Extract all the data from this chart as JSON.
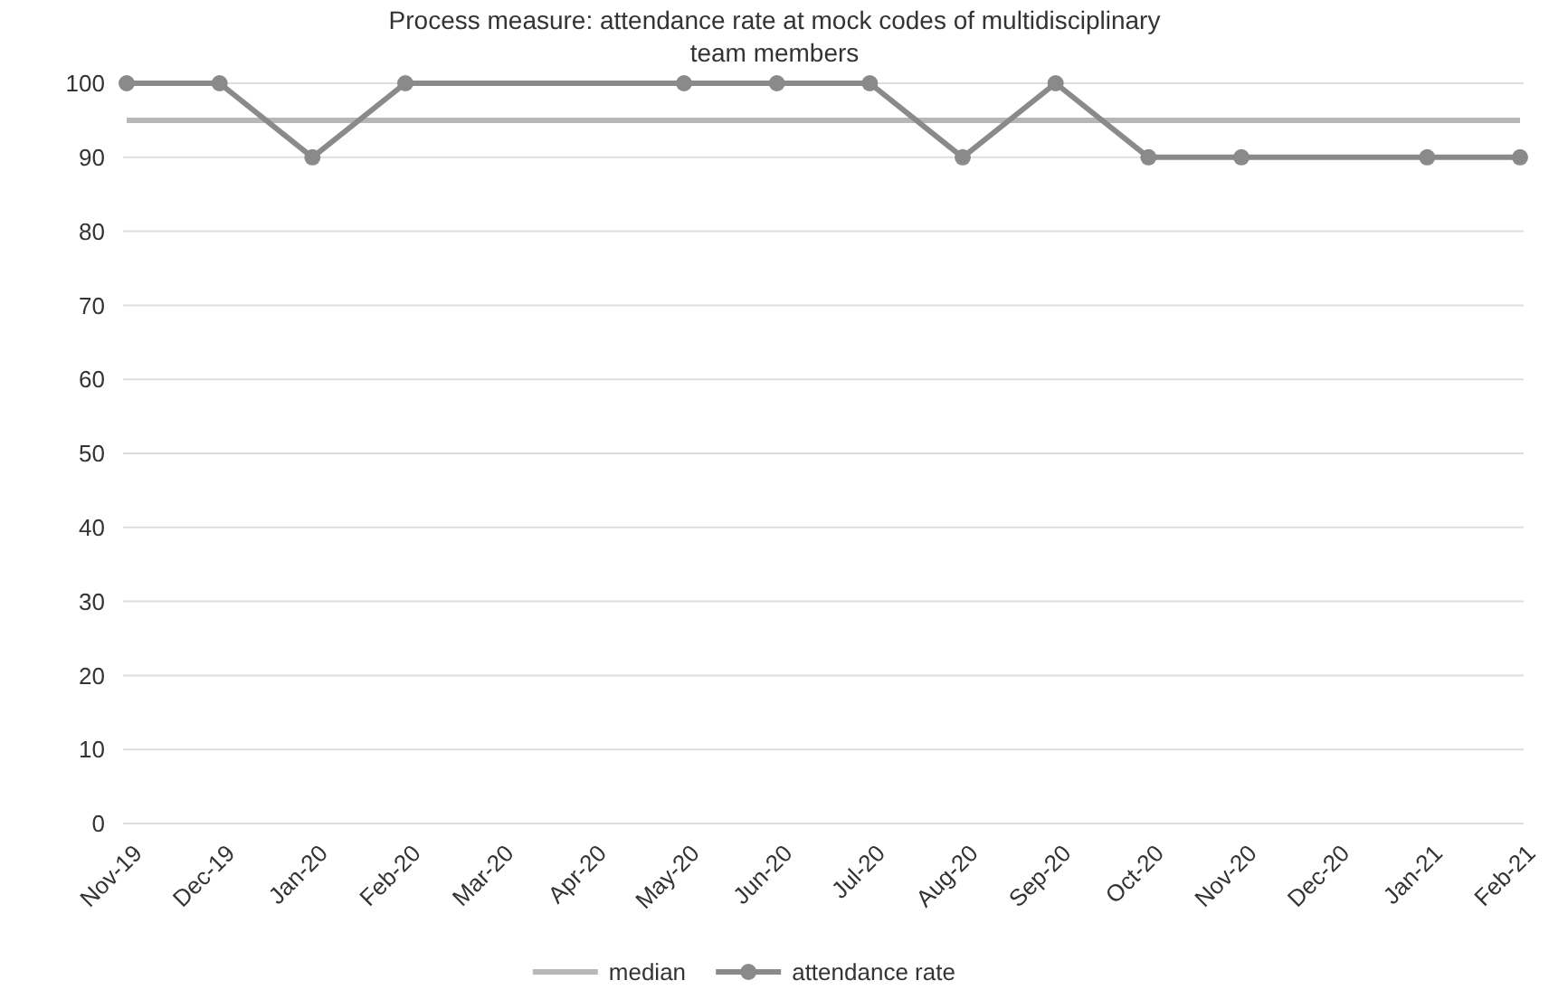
{
  "chart_data": {
    "type": "line",
    "title": "Process measure: attendance rate at mock codes of multidisciplinary team members",
    "categories": [
      "Nov-19",
      "Dec-19",
      "Jan-20",
      "Feb-20",
      "Mar-20",
      "Apr-20",
      "May-20",
      "Jun-20",
      "Jul-20",
      "Aug-20",
      "Sep-20",
      "Oct-20",
      "Nov-20",
      "Dec-20",
      "Jan-21",
      "Feb-21"
    ],
    "series": [
      {
        "name": "median",
        "color": "#b7b7b7",
        "marker": "none",
        "values": [
          95,
          95,
          95,
          95,
          95,
          95,
          95,
          95,
          95,
          95,
          95,
          95,
          95,
          95,
          95,
          95
        ]
      },
      {
        "name": "attendance rate",
        "color": "#8a8a8a",
        "marker": "circle",
        "values": [
          100,
          100,
          90,
          100,
          null,
          null,
          100,
          100,
          100,
          90,
          100,
          90,
          90,
          null,
          90,
          90
        ]
      }
    ],
    "ylim": [
      0,
      100
    ],
    "yticks": [
      0,
      10,
      20,
      30,
      40,
      50,
      60,
      70,
      80,
      90,
      100
    ],
    "grid": "y",
    "legend": "bottom",
    "line_style": "solid"
  }
}
